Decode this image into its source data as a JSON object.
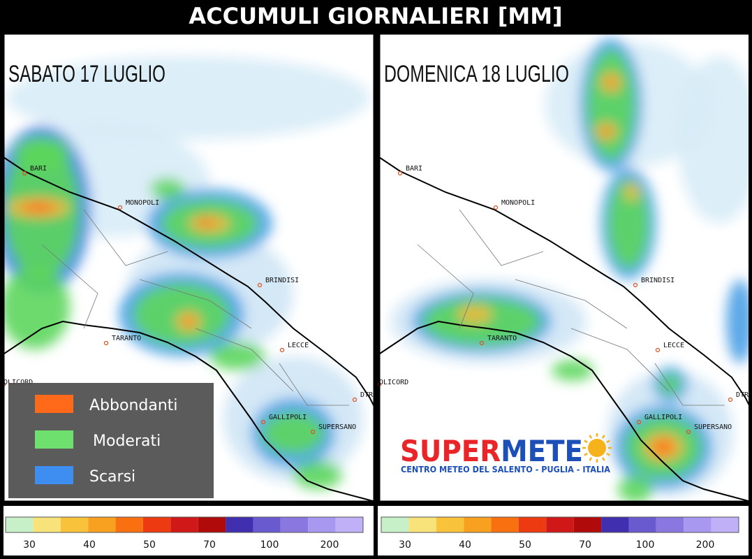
{
  "title": "ACCUMULI GIORNALIERI [MM]",
  "panels": [
    {
      "day": "SABATO 17 LUGLIO"
    },
    {
      "day": "DOMENICA 18 LUGLIO"
    }
  ],
  "cities": [
    "BARI",
    "MONOPOLI",
    "BRINDISI",
    "TARANTO",
    "LECCE",
    "GALLIPOLI",
    "SUPERSANO",
    "OLICORD",
    "DTRA"
  ],
  "legend": [
    "Abbondanti",
    "Moderati",
    "Scarsi"
  ],
  "logo": {
    "name_1": "SUPER",
    "name_2": "METE",
    "subtitle": "CENTRO METEO DEL SALENTO - PUGLIA - ITALIA"
  },
  "colorbar": {
    "labels": [
      "30",
      "40",
      "50",
      "70",
      "100",
      "200"
    ]
  }
}
